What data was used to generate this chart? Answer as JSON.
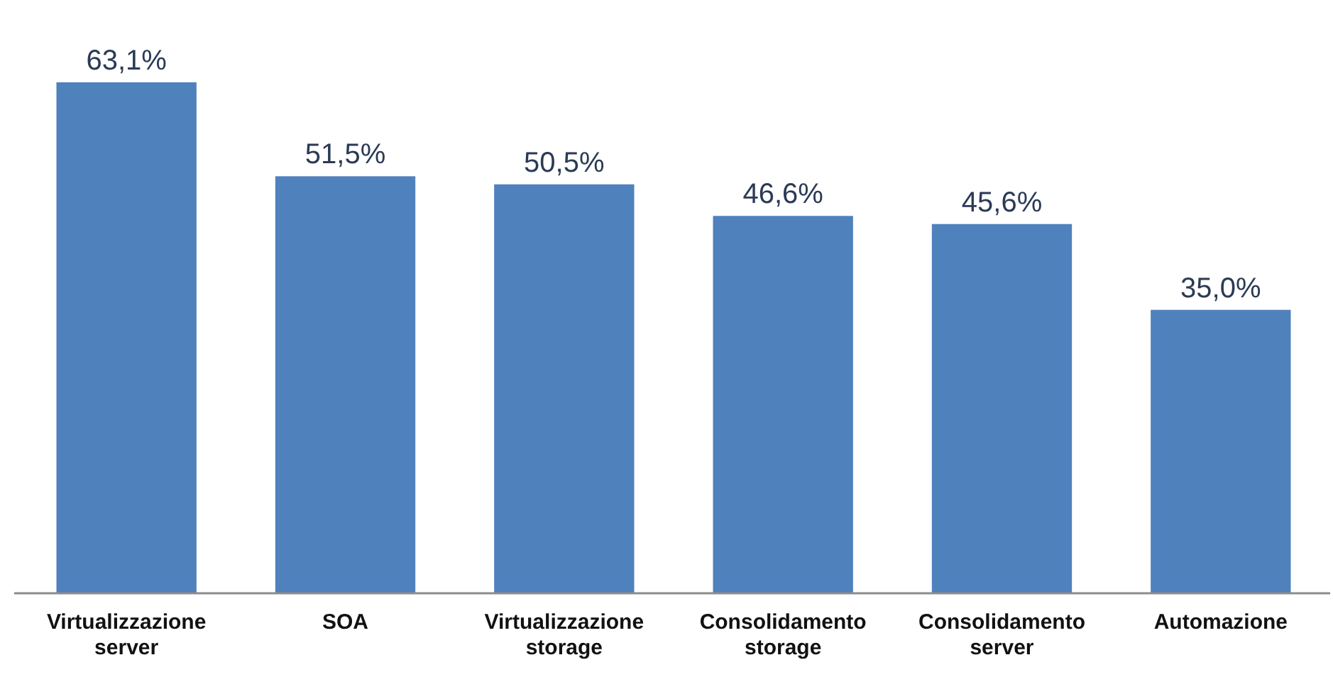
{
  "chart_data": {
    "type": "bar",
    "categories": [
      "Virtualizzazione server",
      "SOA",
      "Virtualizzazione storage",
      "Consolidamento storage",
      "Consolidamento server",
      "Automazione"
    ],
    "values": [
      63.1,
      51.5,
      50.5,
      46.6,
      45.6,
      35.0
    ],
    "value_labels": [
      "63,1%",
      "51,5%",
      "50,5%",
      "46,6%",
      "45,6%",
      "35,0%"
    ],
    "color": "#4f81bd"
  }
}
